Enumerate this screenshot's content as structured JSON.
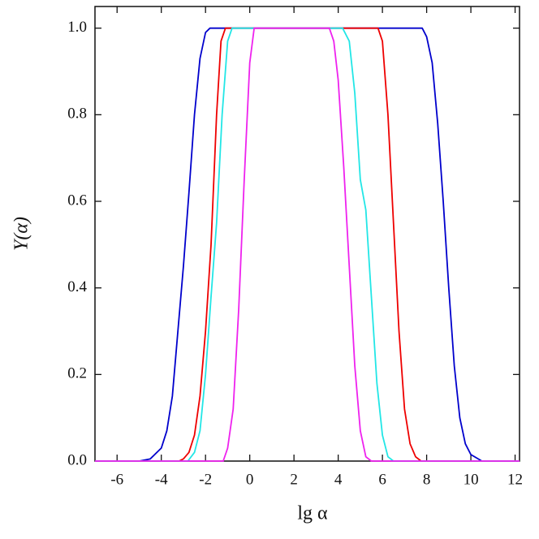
{
  "chart_data": {
    "type": "line",
    "x_label": "lg α",
    "y_label": "Y(α)",
    "xlim": [
      -7,
      12.2
    ],
    "ylim": [
      0,
      1.05
    ],
    "xticks": [
      -6,
      -4,
      -2,
      0,
      2,
      4,
      6,
      8,
      10,
      12
    ],
    "yticks": [
      {
        "value": 0,
        "label": "0.0"
      },
      0.2,
      0.4,
      0.6,
      0.8,
      {
        "value": 1,
        "label": "1.0"
      }
    ],
    "series": [
      {
        "color": "#0000cc",
        "x": [
          -7,
          -5,
          -4.5,
          -4,
          -3.75,
          -3.5,
          -3.25,
          -3,
          -2.75,
          -2.5,
          -2.25,
          -2,
          -1.8,
          7.8,
          8,
          8.25,
          8.5,
          8.75,
          9,
          9.25,
          9.5,
          9.75,
          10,
          10.5,
          12.2
        ],
        "values": [
          0,
          0,
          0.005,
          0.03,
          0.07,
          0.15,
          0.3,
          0.45,
          0.62,
          0.8,
          0.93,
          0.99,
          1,
          1,
          0.98,
          0.92,
          0.78,
          0.6,
          0.4,
          0.22,
          0.1,
          0.04,
          0.015,
          0,
          0
        ]
      },
      {
        "color": "#ee0000",
        "x": [
          -7,
          -3.2,
          -3,
          -2.75,
          -2.5,
          -2.25,
          -2,
          -1.75,
          -1.5,
          -1.3,
          -1.1,
          5.8,
          6,
          6.25,
          6.5,
          6.75,
          7,
          7.25,
          7.5,
          7.75,
          12.2
        ],
        "values": [
          0,
          0,
          0.005,
          0.02,
          0.06,
          0.15,
          0.3,
          0.5,
          0.8,
          0.97,
          1,
          1,
          0.97,
          0.8,
          0.55,
          0.3,
          0.12,
          0.04,
          0.01,
          0,
          0
        ]
      },
      {
        "color": "#22e6e6",
        "x": [
          -7,
          -2.8,
          -2.5,
          -2.25,
          -2,
          -1.75,
          -1.5,
          -1.25,
          -1,
          -0.8,
          4.2,
          4.5,
          4.75,
          5,
          5.25,
          5.5,
          5.75,
          6,
          6.25,
          6.5,
          12.2
        ],
        "values": [
          0,
          0,
          0.02,
          0.07,
          0.2,
          0.38,
          0.55,
          0.8,
          0.97,
          1,
          1,
          0.97,
          0.85,
          0.65,
          0.58,
          0.38,
          0.18,
          0.06,
          0.01,
          0,
          0
        ]
      },
      {
        "color": "#ee22ee",
        "x": [
          -7,
          -1.2,
          -1,
          -0.75,
          -0.5,
          -0.25,
          0,
          0.2,
          3.6,
          3.8,
          4,
          4.25,
          4.5,
          4.75,
          5,
          5.25,
          5.5,
          12.2
        ],
        "values": [
          0,
          0,
          0.03,
          0.12,
          0.35,
          0.65,
          0.92,
          1,
          1,
          0.97,
          0.88,
          0.68,
          0.45,
          0.22,
          0.07,
          0.01,
          0,
          0
        ]
      }
    ]
  }
}
